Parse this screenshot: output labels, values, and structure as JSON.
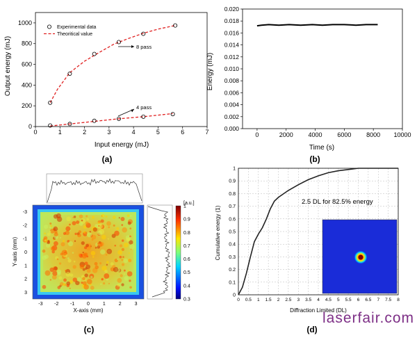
{
  "watermark": "laserfair.com",
  "chart_data": [
    {
      "panel": "(a)",
      "type": "scatter",
      "xlabel": "Input energy (mJ)",
      "ylabel": "Output energy (mJ)",
      "xlim": [
        0,
        7
      ],
      "ylim": [
        0,
        1100
      ],
      "xticks": [
        "0",
        "1",
        "2",
        "3",
        "4",
        "5",
        "6",
        "7"
      ],
      "yticks": [
        "0",
        "200",
        "400",
        "600",
        "800",
        "1000"
      ],
      "legend": {
        "placement": "top-left",
        "entries": [
          "Experimental data",
          "Theoritical value"
        ]
      },
      "annotations": [
        "8 pass",
        "4 pass"
      ],
      "series": [
        {
          "name": "Experimental data",
          "style": "open-circle",
          "group": "8 pass",
          "x": [
            0.6,
            1.4,
            2.4,
            3.4,
            4.4,
            5.7
          ],
          "y": [
            230,
            510,
            700,
            815,
            895,
            975
          ]
        },
        {
          "name": "Experimental data",
          "style": "open-circle",
          "group": "4 pass",
          "x": [
            0.6,
            1.4,
            2.4,
            3.4,
            4.4,
            5.6
          ],
          "y": [
            10,
            25,
            55,
            75,
            95,
            120
          ]
        },
        {
          "name": "Theoritical value",
          "style": "dashed",
          "color": "#e02020",
          "group": "8 pass",
          "x": [
            0.6,
            0.9,
            1.4,
            2.0,
            2.6,
            3.2,
            3.8,
            4.4,
            5.0,
            5.7
          ],
          "y": [
            230,
            360,
            520,
            630,
            715,
            795,
            850,
            900,
            940,
            975
          ]
        },
        {
          "name": "Theoritical value",
          "style": "dashed",
          "color": "#e02020",
          "group": "4 pass",
          "x": [
            0.6,
            1.4,
            2.4,
            3.4,
            4.4,
            5.6
          ],
          "y": [
            5,
            25,
            50,
            75,
            95,
            125
          ]
        }
      ]
    },
    {
      "panel": "(b)",
      "type": "line",
      "xlabel": "Time (s)",
      "ylabel": "Energy (mJ)",
      "xlim": [
        -1000,
        10000
      ],
      "ylim": [
        0,
        0.02
      ],
      "xticks": [
        "0",
        "2000",
        "4000",
        "6000",
        "8000",
        "10000"
      ],
      "yticks": [
        "0.000",
        "0.002",
        "0.004",
        "0.006",
        "0.008",
        "0.010",
        "0.012",
        "0.014",
        "0.016",
        "0.018",
        "0.020"
      ],
      "series": [
        {
          "color": "#000000",
          "x": [
            0,
            300,
            800,
            1500,
            2200,
            3000,
            3800,
            4500,
            5200,
            6000,
            6800,
            7500,
            8300
          ],
          "y": [
            0.0172,
            0.0173,
            0.0174,
            0.0173,
            0.0174,
            0.0173,
            0.0174,
            0.0173,
            0.0174,
            0.0174,
            0.0173,
            0.0174,
            0.0174
          ]
        }
      ]
    },
    {
      "panel": "(c)",
      "type": "heatmap",
      "xlabel": "X-axis (mm)",
      "ylabel": "Y-axis (mm)",
      "xlim": [
        -3.5,
        3.5
      ],
      "ylim": [
        -3.5,
        3.5
      ],
      "xticks": [
        "-3",
        "-2",
        "-1",
        "0",
        "1",
        "2",
        "3"
      ],
      "yticks": [
        "-3",
        "-2",
        "-1",
        "0",
        "1",
        "2",
        "3"
      ],
      "colorbar": {
        "label": "[a.u.]",
        "range": [
          0.3,
          1.0
        ],
        "ticks": [
          "1",
          "0.9",
          "0.8",
          "0.7",
          "0.6",
          "0.5",
          "0.4",
          "0.3"
        ],
        "colormap": "jet"
      },
      "beam": {
        "shape": "square top-hat",
        "extent_mm": [
          -3.1,
          3.1
        ],
        "mean_level": 0.7
      },
      "profiles": [
        "horizontal line-out (top)",
        "vertical line-out (right)"
      ]
    },
    {
      "panel": "(d)",
      "type": "line",
      "xlabel": "Diffraction Limited (DL)",
      "ylabel": "Cumulative energy (1)",
      "xlim": [
        0,
        8
      ],
      "ylim": [
        0,
        1
      ],
      "xticks": [
        "0",
        "0.5",
        "1",
        "1.5",
        "2",
        "2.5",
        "3",
        "3.5",
        "4",
        "4.5",
        "5",
        "5.5",
        "6",
        "6.5",
        "7",
        "7.5",
        "8"
      ],
      "yticks": [
        "0",
        "0.1",
        "0.2",
        "0.3",
        "0.4",
        "0.5",
        "0.6",
        "0.7",
        "0.8",
        "0.9",
        "1"
      ],
      "grid": true,
      "annotation": "2.5 DL for 82.5% energy",
      "inset": "far-field focal spot image",
      "series": [
        {
          "color": "#222222",
          "x": [
            0,
            0.2,
            0.4,
            0.6,
            0.8,
            1.0,
            1.2,
            1.4,
            1.6,
            1.8,
            2.0,
            2.5,
            3.0,
            3.5,
            4.0,
            4.5,
            5.0,
            5.5,
            6.0,
            8.0
          ],
          "y": [
            0,
            0.06,
            0.17,
            0.3,
            0.42,
            0.48,
            0.53,
            0.6,
            0.68,
            0.74,
            0.77,
            0.825,
            0.87,
            0.91,
            0.94,
            0.965,
            0.98,
            0.99,
            1.0,
            1.0
          ]
        }
      ]
    }
  ]
}
